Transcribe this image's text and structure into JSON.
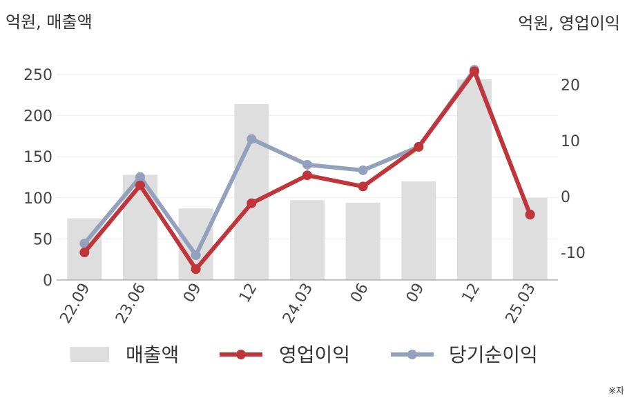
{
  "units": {
    "left": "억원, 매출액",
    "right": "억원, 영업이익"
  },
  "note": "※자",
  "colors": {
    "bar": "#dedede",
    "op": "#c0353a",
    "net": "#94a1bd",
    "grid": "#ececec",
    "axis": "#b0b0b0"
  },
  "chart_data": {
    "type": "bar",
    "categories": [
      "22.09",
      "23.06",
      "09",
      "12",
      "24.03",
      "06",
      "09",
      "12",
      "25.03"
    ],
    "series": [
      {
        "name": "매출액",
        "type": "bar",
        "axis": "left",
        "values": [
          75,
          128,
          87,
          214,
          97,
          94,
          120,
          244,
          100
        ]
      },
      {
        "name": "영업이익",
        "type": "line",
        "axis": "right",
        "values": [
          -10,
          2,
          -13,
          -1.2,
          3.8,
          1.8,
          8.9,
          22.4,
          -3.2
        ]
      },
      {
        "name": "당기순이익",
        "type": "line",
        "axis": "right",
        "values": [
          -8.4,
          3.5,
          -10.5,
          10.3,
          5.7,
          4.7,
          8.9,
          22.7,
          -3.3
        ]
      }
    ],
    "y_left": {
      "ylim": [
        0,
        250
      ],
      "ticks": [
        0,
        50,
        100,
        150,
        200,
        250
      ]
    },
    "y_right": {
      "ylim": [
        -15,
        20
      ],
      "ticks": [
        -10,
        0,
        10,
        20
      ]
    },
    "grid": true,
    "legend": "bottom"
  }
}
